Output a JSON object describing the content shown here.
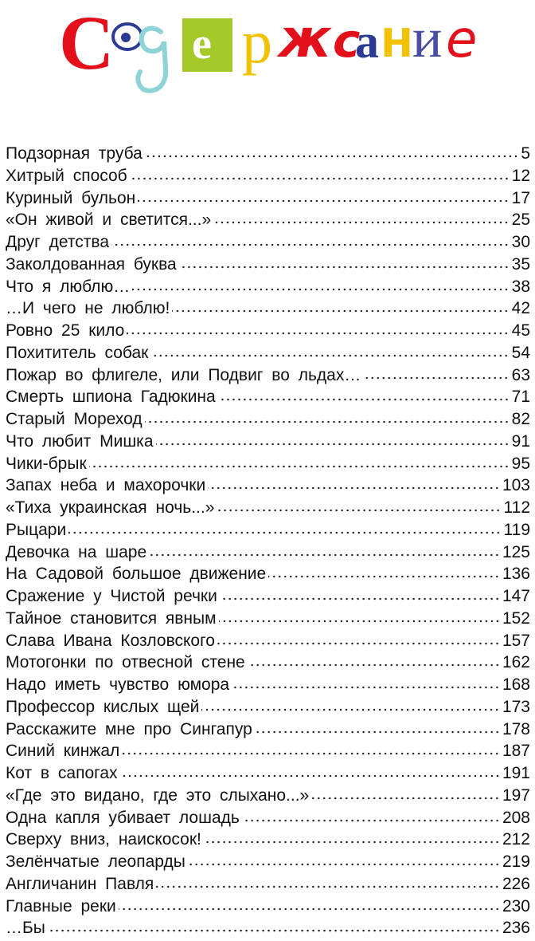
{
  "title": {
    "text": "Содержание",
    "letters": [
      {
        "ch": "С",
        "color": "#e3101c"
      },
      {
        "ch": "о",
        "color": "#2b3a93"
      },
      {
        "ch": "д",
        "color": "#8ed3d6"
      },
      {
        "ch": "е",
        "color": "#ffffff",
        "box": "#a6c92a"
      },
      {
        "ch": "р",
        "color": "#f2c200"
      },
      {
        "ch": "ж",
        "color": "#e3101c"
      },
      {
        "ch": "с",
        "color": "#e3101c"
      },
      {
        "ch": "а",
        "color": "#2b3a93"
      },
      {
        "ch": "н",
        "color": "#f2c200"
      },
      {
        "ch": "и",
        "color": "#4a4fa3"
      },
      {
        "ch": "е",
        "color": "#e3101c"
      }
    ]
  },
  "entries": [
    {
      "title": "Подзорная труба",
      "page": "5"
    },
    {
      "title": "Хитрый способ",
      "page": "12"
    },
    {
      "title": "Куриный бульон",
      "page": "17"
    },
    {
      "title": "«Он живой и светится...»",
      "page": "25"
    },
    {
      "title": "Друг детства",
      "page": "30"
    },
    {
      "title": "Заколдованная буква",
      "page": "35"
    },
    {
      "title": "Что я люблю…",
      "page": "38"
    },
    {
      "title": "…И чего не люблю!",
      "page": "42"
    },
    {
      "title": "Ровно 25 кило",
      "page": "45"
    },
    {
      "title": "Похититель собак",
      "page": "54"
    },
    {
      "title": "Пожар во флигеле, или Подвиг во льдах…",
      "page": "63"
    },
    {
      "title": "Смерть шпиона Гадюкина",
      "page": "71"
    },
    {
      "title": "Старый Мореход",
      "page": "82"
    },
    {
      "title": "Что любит Мишка",
      "page": "91"
    },
    {
      "title": "Чики-брык",
      "page": "95"
    },
    {
      "title": "Запах неба и махорочки",
      "page": "103"
    },
    {
      "title": "«Тиха украинская ночь...»",
      "page": "112"
    },
    {
      "title": "Рыцари",
      "page": "119"
    },
    {
      "title": "Девочка на шаре",
      "page": "125"
    },
    {
      "title": "На Садовой большое движение",
      "page": "136"
    },
    {
      "title": "Сражение у Чистой речки",
      "page": "147"
    },
    {
      "title": "Тайное становится явным",
      "page": "152"
    },
    {
      "title": "Слава Ивана Козловского",
      "page": "157"
    },
    {
      "title": "Мотогонки по отвесной стене",
      "page": "162"
    },
    {
      "title": "Надо иметь чувство юмора",
      "page": "168"
    },
    {
      "title": "Профессор кислых щей",
      "page": "173"
    },
    {
      "title": "Расскажите мне про Сингапур",
      "page": "178"
    },
    {
      "title": "Синий кинжал",
      "page": "187"
    },
    {
      "title": "Кот в сапогах",
      "page": "191"
    },
    {
      "title": "«Где это видано, где это слыхано...»",
      "page": "197"
    },
    {
      "title": "Одна капля убивает лошадь",
      "page": "208"
    },
    {
      "title": "Сверху вниз, наискосок!",
      "page": "212"
    },
    {
      "title": "Зелёнчатые леопарды",
      "page": "219"
    },
    {
      "title": "Англичанин Павля",
      "page": "226"
    },
    {
      "title": "Главные реки",
      "page": "230"
    },
    {
      "title": "…Бы",
      "page": "236"
    }
  ]
}
